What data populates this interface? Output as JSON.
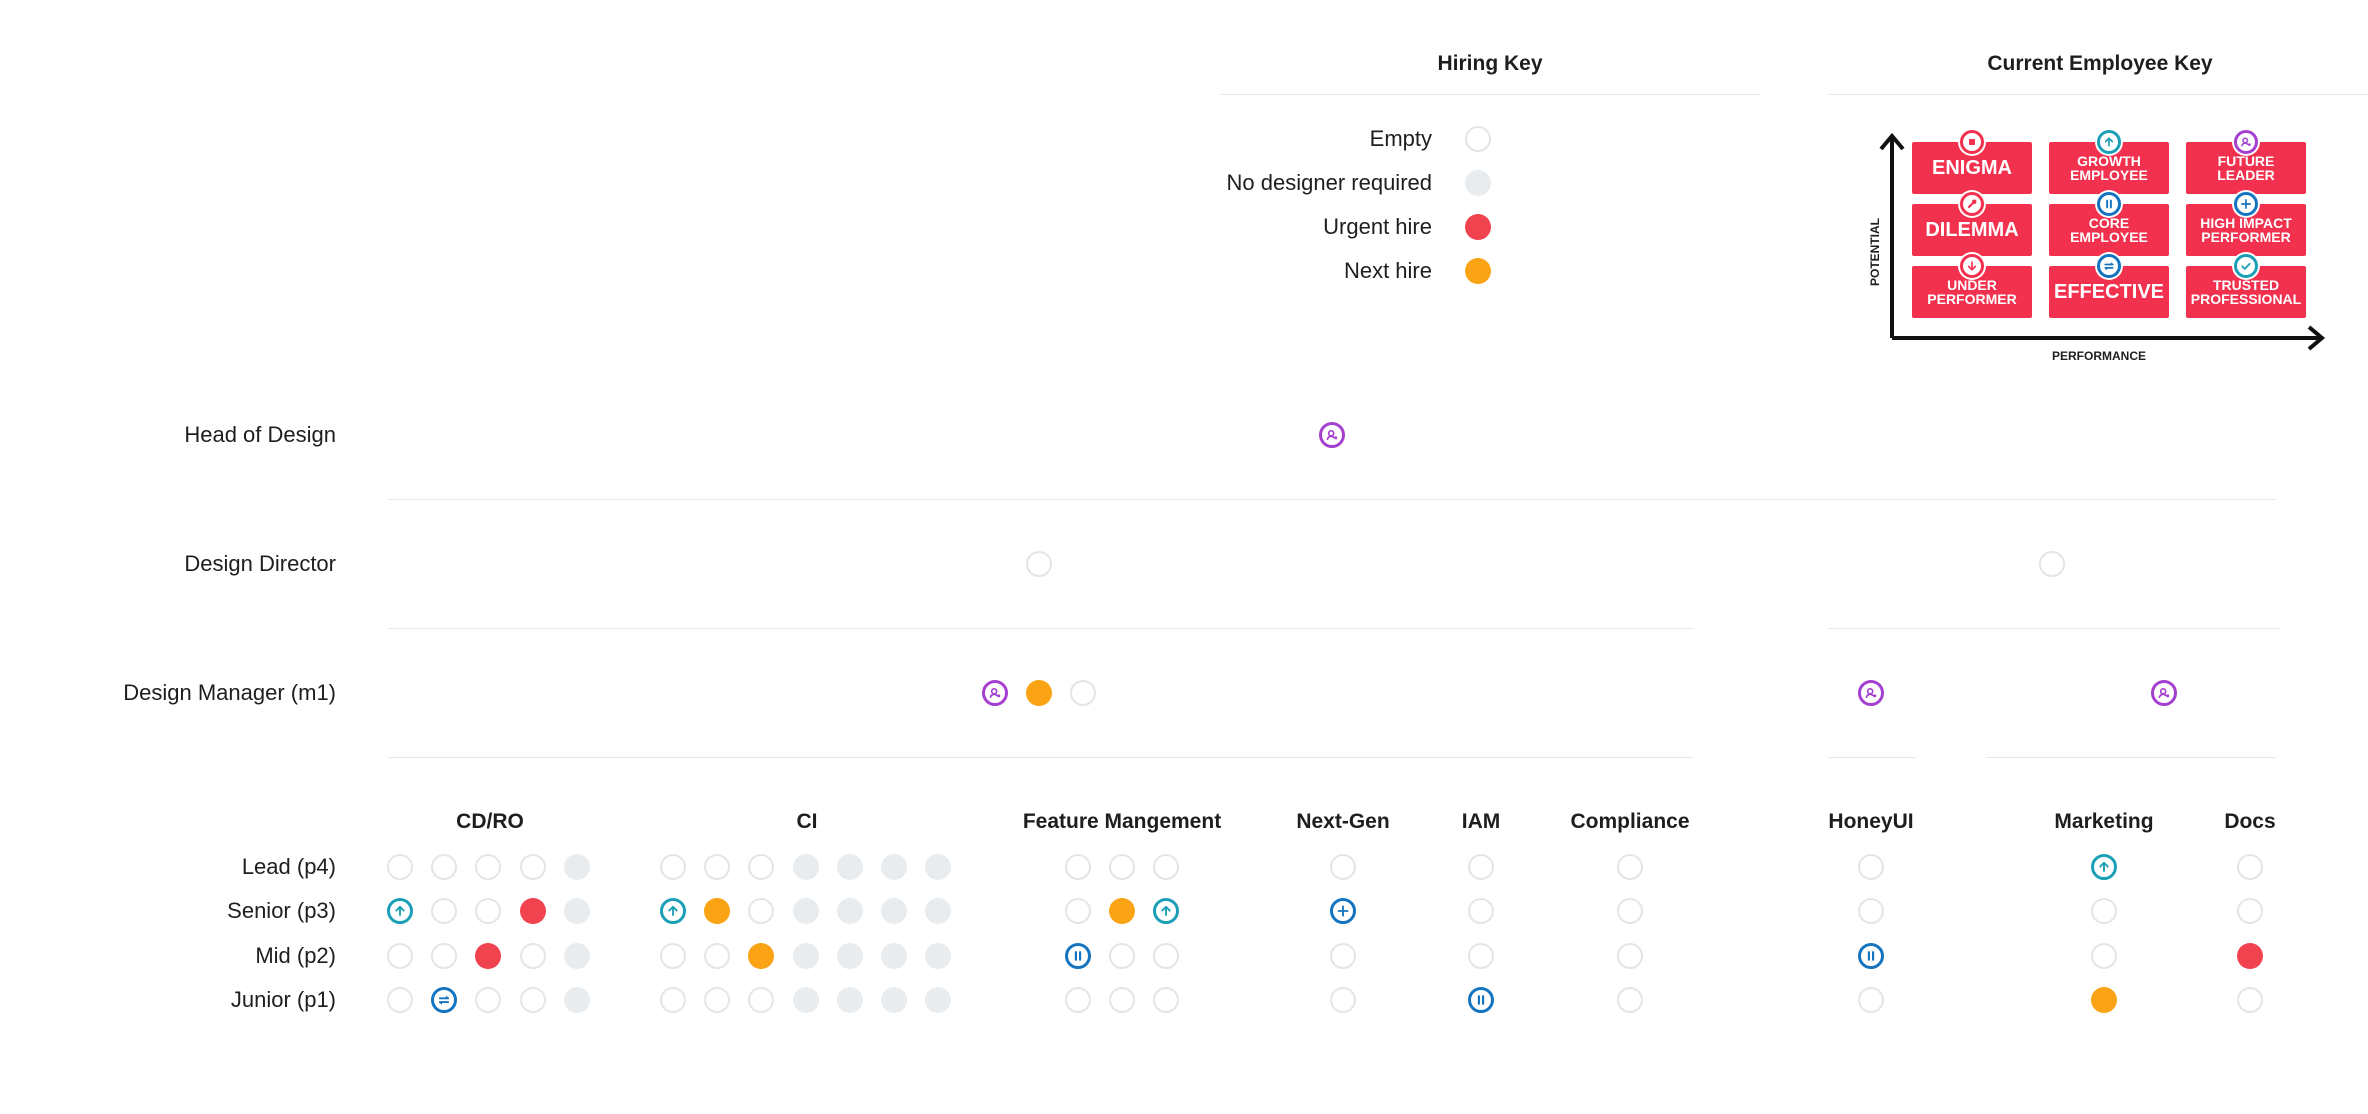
{
  "hiring_key": {
    "title": "Hiring Key",
    "items": [
      {
        "label": "Empty",
        "status": "empty"
      },
      {
        "label": "No designer required",
        "status": "none"
      },
      {
        "label": "Urgent hire",
        "status": "urgent"
      },
      {
        "label": "Next hire",
        "status": "next"
      }
    ]
  },
  "employee_key": {
    "title": "Current Employee Key",
    "y_axis_label": "POTENTIAL",
    "x_axis_label": "PERFORMANCE",
    "cells": [
      {
        "label": "ENIGMA",
        "icon": "stop",
        "size": "big"
      },
      {
        "label": "GROWTH\nEMPLOYEE",
        "icon": "up",
        "size": "small"
      },
      {
        "label": "FUTURE\nLEADER",
        "icon": "leader",
        "size": "small"
      },
      {
        "label": "DILEMMA",
        "icon": "wrench",
        "size": "big"
      },
      {
        "label": "CORE\nEMPLOYEE",
        "icon": "pause",
        "size": "small"
      },
      {
        "label": "HIGH IMPACT\nPERFORMER",
        "icon": "plus",
        "size": "small"
      },
      {
        "label": "UNDER\nPERFORMER",
        "icon": "down",
        "size": "small"
      },
      {
        "label": "EFFECTIVE",
        "icon": "equal",
        "size": "big"
      },
      {
        "label": "TRUSTED\nPROFESSIONAL",
        "icon": "check",
        "size": "small"
      }
    ]
  },
  "leadership_rows": [
    {
      "label": "Head of Design",
      "slots": [
        {
          "status": "leader"
        }
      ]
    },
    {
      "label": "Design Director",
      "slots": [
        {
          "status": "empty"
        },
        {
          "status": "empty"
        }
      ]
    },
    {
      "label": "Design Manager (m1)",
      "slots": [
        {
          "status": "leader"
        },
        {
          "status": "next"
        },
        {
          "status": "empty"
        },
        {
          "status": "leader"
        },
        {
          "status": "leader"
        }
      ]
    }
  ],
  "teams": [
    {
      "name": "CD/RO",
      "rows": [
        [
          "empty",
          "empty",
          "empty",
          "empty",
          "none"
        ],
        [
          "up",
          "empty",
          "empty",
          "urgent",
          "none"
        ],
        [
          "empty",
          "empty",
          "urgent",
          "empty",
          "none"
        ],
        [
          "empty",
          "equal",
          "empty",
          "empty",
          "none"
        ]
      ]
    },
    {
      "name": "CI",
      "rows": [
        [
          "empty",
          "empty",
          "empty",
          "none",
          "none",
          "none",
          "none"
        ],
        [
          "up",
          "next",
          "empty",
          "none",
          "none",
          "none",
          "none"
        ],
        [
          "empty",
          "empty",
          "next",
          "none",
          "none",
          "none",
          "none"
        ],
        [
          "empty",
          "empty",
          "empty",
          "none",
          "none",
          "none",
          "none"
        ]
      ]
    },
    {
      "name": "Feature Mangement",
      "rows": [
        [
          "empty",
          "empty",
          "empty"
        ],
        [
          "empty",
          "next",
          "up"
        ],
        [
          "pause",
          "empty",
          "empty"
        ],
        [
          "empty",
          "empty",
          "empty"
        ]
      ]
    },
    {
      "name": "Next-Gen",
      "rows": [
        [
          "empty"
        ],
        [
          "plus"
        ],
        [
          "empty"
        ],
        [
          "empty"
        ]
      ]
    },
    {
      "name": "IAM",
      "rows": [
        [
          "empty"
        ],
        [
          "empty"
        ],
        [
          "empty"
        ],
        [
          "pause"
        ]
      ]
    },
    {
      "name": "Compliance",
      "rows": [
        [
          "empty"
        ],
        [
          "empty"
        ],
        [
          "empty"
        ],
        [
          "empty"
        ]
      ]
    },
    {
      "name": "HoneyUI",
      "rows": [
        [
          "empty"
        ],
        [
          "empty"
        ],
        [
          "pause"
        ],
        [
          "empty"
        ]
      ]
    },
    {
      "name": "Marketing",
      "rows": [
        [
          "up"
        ],
        [
          "empty"
        ],
        [
          "empty"
        ],
        [
          "next"
        ]
      ]
    },
    {
      "name": "Docs",
      "rows": [
        [
          "empty"
        ],
        [
          "empty"
        ],
        [
          "urgent"
        ],
        [
          "empty"
        ]
      ]
    }
  ],
  "levels": [
    "Lead (p4)",
    "Senior (p3)",
    "Mid (p2)",
    "Junior (p1)"
  ],
  "colors": {
    "urgent": "#f0424f",
    "next": "#f9a315",
    "none": "#e9ecef",
    "empty_border": "#e3e5e8",
    "teal": "#1b9fb7",
    "blue": "#1474bf",
    "purple": "#a43fd0",
    "matrix_red": "#f2314e"
  }
}
